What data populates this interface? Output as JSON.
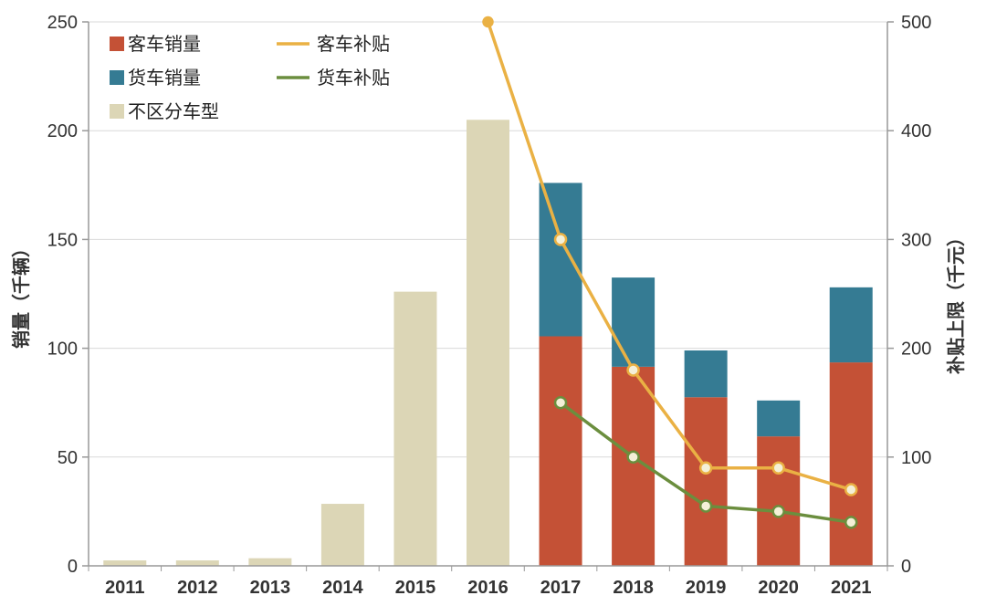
{
  "chart_data": {
    "type": "bar",
    "categories": [
      "2011",
      "2012",
      "2013",
      "2014",
      "2015",
      "2016",
      "2017",
      "2018",
      "2019",
      "2020",
      "2021"
    ],
    "series": [
      {
        "name": "客车销量",
        "axis": "left",
        "color": "#c45136",
        "values": [
          null,
          null,
          null,
          null,
          null,
          null,
          105.5,
          91.5,
          77.5,
          59.5,
          93.5
        ]
      },
      {
        "name": "货车销量",
        "axis": "left",
        "color": "#357b93",
        "values": [
          null,
          null,
          null,
          null,
          null,
          null,
          70.5,
          41,
          21.5,
          16.5,
          34.5
        ]
      },
      {
        "name": "不区分车型",
        "axis": "left",
        "color": "#dcd6b6",
        "values": [
          2.5,
          2.5,
          3.5,
          28.5,
          126,
          205,
          null,
          null,
          null,
          null,
          null
        ]
      }
    ],
    "line_series": [
      {
        "name": "客车补贴",
        "axis": "right",
        "color": "#eab144",
        "values": [
          null,
          null,
          null,
          null,
          null,
          500,
          300,
          180,
          90,
          90,
          70
        ]
      },
      {
        "name": "货车补贴",
        "axis": "right",
        "color": "#6b8e3e",
        "values": [
          null,
          null,
          null,
          null,
          null,
          null,
          150,
          100,
          55,
          50,
          40
        ]
      }
    ],
    "y_left": {
      "label": "销量（千辆）",
      "min": 0,
      "max": 250,
      "ticks": [
        0,
        50,
        100,
        150,
        200,
        250
      ]
    },
    "y_right": {
      "label": "补贴上限（千元）",
      "min": 0,
      "max": 500,
      "ticks": [
        0,
        100,
        200,
        300,
        400,
        500
      ]
    },
    "legend": [
      {
        "label": "客车销量",
        "kind": "box",
        "color": "#c45136"
      },
      {
        "label": "货车销量",
        "kind": "box",
        "color": "#357b93"
      },
      {
        "label": "不区分车型",
        "kind": "box",
        "color": "#dcd6b6"
      },
      {
        "label": "客车补贴",
        "kind": "line",
        "color": "#eab144"
      },
      {
        "label": "货车补贴",
        "kind": "line",
        "color": "#6b8e3e"
      }
    ],
    "legend_position": "top-left",
    "grid": true
  }
}
